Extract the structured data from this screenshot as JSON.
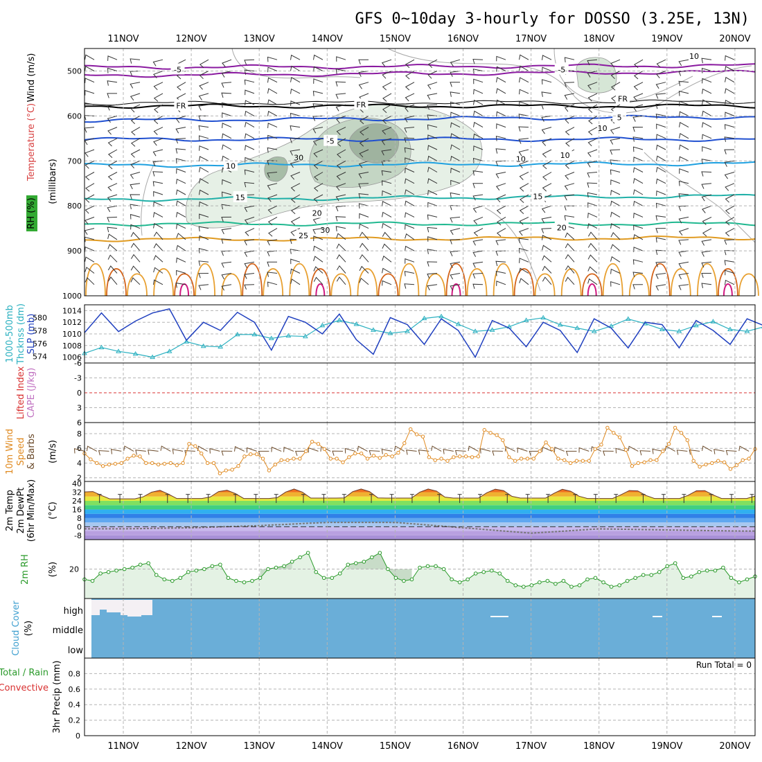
{
  "title": "GFS 0~10day 3-hourly for DOSSO (3.25E, 13N)",
  "dates": [
    "11NOV",
    "12NOV",
    "13NOV",
    "14NOV",
    "15NOV",
    "16NOV",
    "17NOV",
    "18NOV",
    "19NOV",
    "20NOV"
  ],
  "colors": {
    "slp": "#1f3fbf",
    "thick": "#2ab0c0",
    "temp": "#e89a2a",
    "dew": "#7a4a2a",
    "rh": "#2a9a2a",
    "rh_fill": "#e4f2e4",
    "cloud": "#6aaed8",
    "wind": "#e08a20",
    "barb": "#6b4a2a",
    "li": "#d83030",
    "cape": "#c070c0"
  },
  "chart_data": [
    {
      "type": "contour",
      "panel": "upper-air",
      "ylabels": [
        {
          "text": "RH (%)",
          "color": "#33aa33"
        },
        {
          "text": "Temperature (°C)",
          "color": "#d84040"
        },
        {
          "text": "Wind (m/s)",
          "color": "#000000"
        }
      ],
      "yaxis_title": "(millibars)",
      "yticks": [
        500,
        600,
        700,
        800,
        900,
        1000
      ],
      "ylim": [
        450,
        1000
      ],
      "isotherm_labels": [
        {
          "text": "-5",
          "t": 0.8,
          "p": 497,
          "color": "#8a1aa0"
        },
        {
          "text": "-5",
          "t": 6.45,
          "p": 497,
          "color": "#8a1aa0"
        },
        {
          "text": "FR",
          "t": 0.85,
          "p": 577,
          "color": "#000000"
        },
        {
          "text": "FR",
          "t": 3.5,
          "p": 575,
          "color": "#000000"
        },
        {
          "text": "FR",
          "t": 7.35,
          "p": 562,
          "color": "#000000"
        },
        {
          "text": "5",
          "t": 7.3,
          "p": 603,
          "color": "#1f4fd0"
        },
        {
          "text": "-5",
          "t": 3.05,
          "p": 656,
          "color": "#1f4fd0"
        },
        {
          "text": "10",
          "t": 1.58,
          "p": 711,
          "color": "#1ea0e0"
        },
        {
          "text": "10",
          "t": 6.5,
          "p": 687,
          "color": "#1ea0e0"
        },
        {
          "text": "15",
          "t": 1.72,
          "p": 781,
          "color": "#20b0a8"
        },
        {
          "text": "15",
          "t": 6.1,
          "p": 779,
          "color": "#20b0a8"
        },
        {
          "text": "20",
          "t": 2.85,
          "p": 816,
          "color": "#20b890"
        },
        {
          "text": "20",
          "t": 6.45,
          "p": 848,
          "color": "#20b890"
        },
        {
          "text": "25",
          "t": 2.65,
          "p": 866,
          "color": "#e09a20"
        }
      ],
      "rh_labels": [
        {
          "text": "10",
          "t": 8.4,
          "p": 467
        },
        {
          "text": "10",
          "t": 7.05,
          "p": 627
        },
        {
          "text": "10",
          "t": 5.85,
          "p": 696
        },
        {
          "text": "30",
          "t": 2.58,
          "p": 693
        },
        {
          "text": "30",
          "t": 2.97,
          "p": 854
        }
      ]
    },
    {
      "type": "line",
      "panel": "thickness-slp",
      "ylabels": [
        {
          "text": "1000-500mb",
          "color": "#2ab0c0"
        },
        {
          "text": "Thcknss (dm)",
          "color": "#2ab0c0"
        },
        {
          "text": "SLP (mb)",
          "color": "#1f3fbf"
        }
      ],
      "yticks_left": [
        574,
        576,
        578,
        580
      ],
      "ylim_left": [
        573,
        582
      ],
      "yticks_right": [
        1006,
        1008,
        1010,
        1012,
        1014
      ],
      "ylim_right": [
        1005,
        1015
      ],
      "x_step_hours": 6,
      "slp": [
        1010.2,
        1013.6,
        1010.4,
        1012.2,
        1013.6,
        1014.3,
        1008.9,
        1012.0,
        1010.6,
        1013.7,
        1012.0,
        1007.2,
        1013.0,
        1012.0,
        1010.0,
        1013.4,
        1009.0,
        1006.5,
        1012.8,
        1011.6,
        1008.2,
        1012.6,
        1010.6,
        1006.0,
        1012.3,
        1011.0,
        1007.8,
        1012.0,
        1010.6,
        1006.8,
        1012.6,
        1011.0,
        1007.6,
        1012.0,
        1011.6,
        1007.6,
        1012.3,
        1010.6,
        1008.2,
        1012.6,
        1011.4,
        1008.2,
        1012.0,
        1011.2,
        1007.6,
        1012.3,
        1011.0,
        1008.2,
        1012.6,
        1012.6
      ],
      "thickness": [
        574.5,
        575.4,
        574.8,
        574.4,
        573.9,
        574.8,
        576.3,
        575.6,
        575.5,
        577.4,
        577.4,
        576.8,
        577.2,
        577.1,
        578.8,
        579.6,
        579.0,
        578.1,
        577.6,
        577.9,
        579.9,
        580.2,
        579.0,
        577.9,
        578.1,
        578.6,
        579.6,
        580.0,
        578.9,
        578.4,
        577.9,
        578.7,
        579.8,
        579.1,
        578.2,
        577.9,
        578.8,
        579.4,
        578.2,
        577.9,
        578.6,
        579.5,
        579.2,
        578.1,
        577.5,
        578.4,
        579.2,
        578.3,
        576.8,
        575.9
      ]
    },
    {
      "type": "line",
      "panel": "stability",
      "ylabels": [
        {
          "text": "Lifted Index",
          "color": "#d83030"
        },
        {
          "text": "CAPE (J/kg)",
          "color": "#c070c0"
        }
      ],
      "yticks": [
        -6,
        -3,
        0,
        3,
        6
      ],
      "ylim": [
        -6,
        6
      ],
      "li_reference": 0,
      "cape": []
    },
    {
      "type": "line",
      "panel": "10m-wind",
      "ylabels": [
        {
          "text": "10m Wind",
          "color": "#e08a20"
        },
        {
          "text": "Speed",
          "color": "#e08a20"
        },
        {
          "text": "& Barbs",
          "color": "#6b4a2a"
        }
      ],
      "yaxis_title": "(m/s)",
      "yticks": [
        2,
        4,
        6,
        8
      ],
      "ylim": [
        1.5,
        9.5
      ],
      "wind_speed": [
        5.3,
        4.5,
        4.0,
        3.6,
        3.8,
        3.9,
        4.0,
        4.6,
        5.0,
        4.9,
        4.0,
        4.0,
        3.8,
        3.9,
        4.0,
        3.7,
        4.0,
        6.6,
        6.3,
        5.3,
        4.0,
        4.0,
        2.6,
        3.0,
        3.1,
        3.6,
        4.9,
        5.2,
        5.2,
        4.6,
        3.0,
        3.8,
        4.4,
        4.4,
        4.6,
        4.6,
        5.6,
        6.9,
        6.6,
        5.9,
        4.6,
        4.6,
        4.1,
        4.8,
        5.3,
        5.3,
        4.6,
        5.0,
        4.7,
        5.1,
        4.9,
        5.4,
        6.7,
        8.6,
        7.9,
        7.6,
        4.8,
        4.4,
        4.6,
        4.3,
        4.8,
        4.9,
        4.9,
        4.8,
        4.9,
        8.5,
        8.1,
        7.8,
        7.1,
        4.8,
        4.3,
        4.6,
        4.6,
        4.6,
        5.6,
        6.8,
        5.9,
        4.6,
        4.4,
        4.0,
        4.3,
        4.3,
        4.3,
        5.9,
        6.5,
        8.8,
        8.1,
        7.5,
        5.8,
        3.6,
        4.0,
        4.1,
        4.4,
        4.4,
        5.6,
        6.6,
        8.8,
        8.1,
        7.1,
        4.3,
        3.5,
        3.8,
        4.0,
        4.3,
        4.1,
        3.2,
        3.7,
        4.4,
        4.6,
        5.9
      ]
    },
    {
      "type": "area",
      "panel": "2m-temp",
      "ylabels": [
        {
          "text": "2m Temp",
          "color": "#000000"
        },
        {
          "text": "2m DewPt",
          "color": "#000000"
        },
        {
          "text": "(6hr Min/Max)",
          "color": "#000000"
        }
      ],
      "yaxis_title": "(°C)",
      "yticks": [
        -8,
        0,
        8,
        16,
        24,
        32,
        40
      ],
      "ylim": [
        -12,
        42
      ],
      "temp_max": [
        33,
        34,
        34,
        35,
        35,
        35,
        35,
        34,
        34,
        34
      ],
      "temp_min": [
        22,
        22,
        22,
        22,
        22,
        22,
        22,
        22,
        22,
        22
      ],
      "dewpoint": [
        -2,
        -1,
        1,
        4,
        4,
        -1,
        -6,
        -2,
        -3,
        -4
      ]
    },
    {
      "type": "line",
      "panel": "2m-rh",
      "ylabels": [
        {
          "text": "2m RH",
          "color": "#2a9a2a"
        }
      ],
      "yaxis_title": "(%)",
      "yticks": [
        20
      ],
      "ylim": [
        0,
        40
      ],
      "rh": [
        13,
        12,
        17,
        18,
        19,
        20,
        21,
        23,
        24,
        16,
        13,
        12,
        14,
        18,
        19,
        20,
        22,
        23,
        14,
        12,
        11,
        12,
        14,
        20,
        21,
        22,
        25,
        28,
        31,
        18,
        14,
        14,
        17,
        23,
        24,
        25,
        28,
        31,
        20,
        14,
        12,
        13,
        21,
        22,
        22,
        20,
        13,
        11,
        13,
        17,
        18,
        19,
        17,
        12,
        9,
        8,
        9,
        11,
        12,
        10,
        12,
        8,
        9,
        13,
        14,
        11,
        8,
        9,
        12,
        14,
        16,
        16,
        18,
        22,
        24,
        14,
        15,
        18,
        19,
        19,
        21,
        14,
        11,
        13,
        15
      ]
    },
    {
      "type": "area",
      "panel": "cloud-cover",
      "ylabels": [
        {
          "text": "Cloud Cover",
          "color": "#40a0d0"
        }
      ],
      "yaxis_title": "(%)",
      "categories": [
        "high",
        "middle",
        "low"
      ],
      "note": "overcast blue across all levels; white breaks near start at high level"
    },
    {
      "type": "line",
      "panel": "precip",
      "ylabels": [
        {
          "text": "Total / Rain",
          "color": "#2a9a2a"
        },
        {
          "text": "Convective",
          "color": "#d83030"
        }
      ],
      "yaxis_title": "3hr Precip (mm)",
      "yticks": [
        0,
        0.2,
        0.4,
        0.6,
        0.8
      ],
      "ylim": [
        0,
        1
      ],
      "run_total": "Run Total = 0",
      "precip": []
    }
  ]
}
